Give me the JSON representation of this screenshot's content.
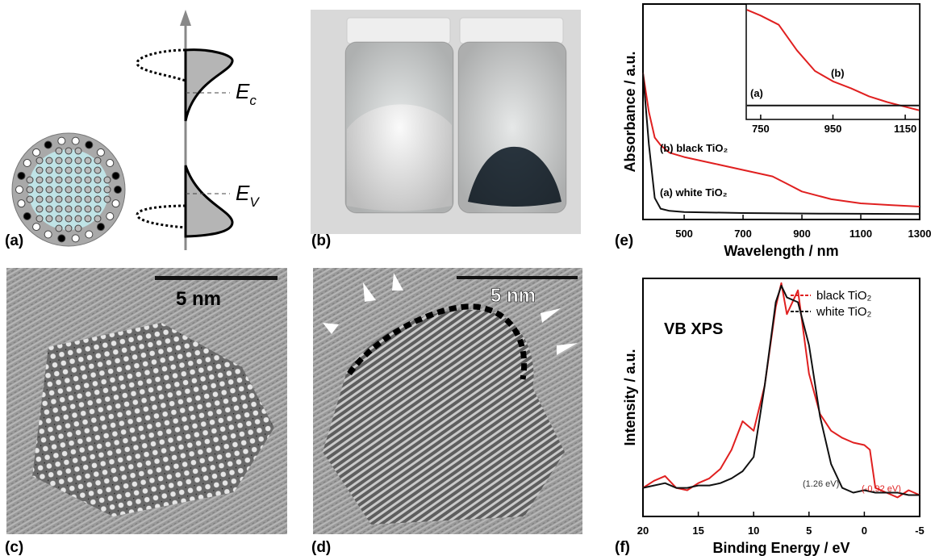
{
  "panels": {
    "a": {
      "label": "(a)",
      "ec": {
        "main": "E",
        "sub": "c"
      },
      "ev": {
        "main": "E",
        "sub": "V"
      }
    },
    "b": {
      "label": "(b)"
    },
    "c": {
      "label": "(c)",
      "scale": "5 nm"
    },
    "d": {
      "label": "(d)",
      "scale": "5 nm"
    },
    "e": {
      "label": "(e)"
    },
    "f": {
      "label": "(f)"
    }
  },
  "chart_data": [
    {
      "type": "line",
      "xlabel": "Wavelength / nm",
      "ylabel": "Absorbance / a.u.",
      "xlim": [
        360,
        1300
      ],
      "xticks": [
        500,
        700,
        900,
        1100,
        1300
      ],
      "ylim": [
        0,
        1
      ],
      "series": [
        {
          "name": "(b) black TiO₂",
          "color": "#e02020",
          "x": [
            360,
            380,
            400,
            420,
            450,
            500,
            600,
            700,
            800,
            850,
            900,
            1000,
            1100,
            1200,
            1300
          ],
          "values": [
            0.68,
            0.5,
            0.38,
            0.345,
            0.31,
            0.29,
            0.26,
            0.23,
            0.2,
            0.165,
            0.13,
            0.094,
            0.075,
            0.067,
            0.06
          ]
        },
        {
          "name": "(a) white TiO₂",
          "color": "#111111",
          "x": [
            360,
            380,
            400,
            420,
            450,
            500,
            700,
            1000,
            1300
          ],
          "values": [
            0.68,
            0.35,
            0.1,
            0.05,
            0.04,
            0.035,
            0.03,
            0.027,
            0.025
          ]
        }
      ]
    },
    {
      "type": "line",
      "xlim": [
        710,
        1190
      ],
      "xticks": [
        750,
        950,
        1150
      ],
      "ylim": [
        0,
        1
      ],
      "series": [
        {
          "name": "(b)",
          "color": "#e02020",
          "x": [
            712,
            750,
            800,
            850,
            900,
            950,
            1000,
            1050,
            1100,
            1150,
            1188
          ],
          "values": [
            0.95,
            0.9,
            0.82,
            0.6,
            0.42,
            0.33,
            0.27,
            0.2,
            0.15,
            0.11,
            0.08
          ]
        },
        {
          "name": "(a)",
          "color": "#111111",
          "x": [
            712,
            800,
            900,
            1000,
            1100,
            1188
          ],
          "values": [
            0.12,
            0.12,
            0.12,
            0.12,
            0.12,
            0.12
          ]
        }
      ]
    },
    {
      "type": "line",
      "xlabel": "Binding Energy / eV",
      "ylabel": "Intensity / a.u.",
      "xlim": [
        20,
        -5
      ],
      "xticks": [
        20,
        15,
        10,
        5,
        0,
        -5
      ],
      "ylim": [
        0,
        1
      ],
      "annotations": [
        "VB XPS",
        "(1.26 eV)",
        "(-0.92 eV)"
      ],
      "series": [
        {
          "name": "black TiO₂",
          "color": "#e02020",
          "x": [
            20,
            19,
            18,
            17,
            16,
            15,
            14,
            13,
            12,
            11,
            10,
            9,
            8,
            7.5,
            7,
            6,
            5,
            4,
            3,
            2,
            1,
            0,
            -0.5,
            -1,
            -2,
            -3,
            -4,
            -5
          ],
          "values": [
            0.12,
            0.15,
            0.17,
            0.12,
            0.11,
            0.14,
            0.16,
            0.2,
            0.28,
            0.4,
            0.36,
            0.55,
            0.88,
            0.98,
            0.85,
            0.95,
            0.6,
            0.43,
            0.36,
            0.33,
            0.31,
            0.3,
            0.28,
            0.12,
            0.1,
            0.08,
            0.11,
            0.09
          ]
        },
        {
          "name": "white TiO₂",
          "color": "#111111",
          "x": [
            20,
            19,
            18,
            17,
            16,
            15,
            14,
            13,
            12,
            11,
            10,
            9,
            8,
            7.5,
            7,
            6,
            5,
            4,
            3,
            2,
            1,
            0,
            -1,
            -2,
            -3,
            -4,
            -5
          ],
          "values": [
            0.12,
            0.13,
            0.14,
            0.12,
            0.12,
            0.13,
            0.13,
            0.14,
            0.16,
            0.19,
            0.25,
            0.55,
            0.9,
            0.97,
            0.92,
            0.9,
            0.72,
            0.42,
            0.22,
            0.12,
            0.1,
            0.11,
            0.1,
            0.1,
            0.1,
            0.09,
            0.09
          ]
        }
      ]
    }
  ]
}
